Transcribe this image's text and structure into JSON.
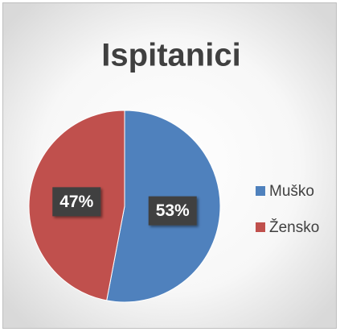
{
  "chart_data": {
    "type": "pie",
    "title": "Ispitanici",
    "categories": [
      "Muško",
      "Žensko"
    ],
    "values": [
      53,
      47
    ],
    "value_labels": [
      "53%",
      "47%"
    ],
    "colors": [
      "#4f81bd",
      "#c0504d"
    ],
    "legend": "right"
  }
}
